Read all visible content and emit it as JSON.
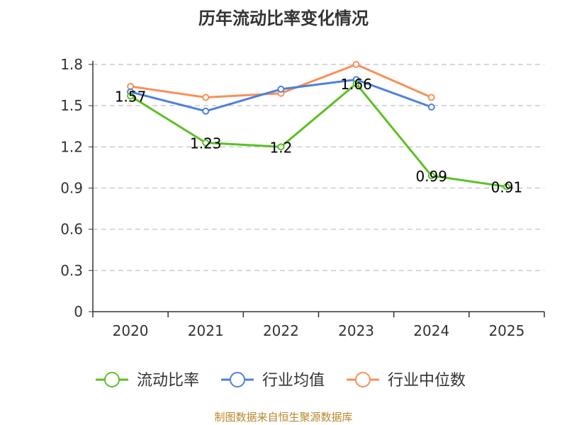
{
  "chart_data": {
    "type": "line",
    "title": "历年流动比率变化情况",
    "xlabel": "",
    "ylabel": "",
    "categories": [
      "2020",
      "2021",
      "2022",
      "2023",
      "2024",
      "2025"
    ],
    "yticks": [
      "0",
      "0.3",
      "0.6",
      "0.9",
      "1.2",
      "1.5",
      "1.8"
    ],
    "ylim": [
      0,
      1.8
    ],
    "grid": true,
    "legend_position": "bottom",
    "series": [
      {
        "name": "流动比率",
        "color": "#5cc024",
        "values": [
          1.57,
          1.23,
          1.2,
          1.66,
          0.99,
          0.91
        ],
        "labels": [
          "1.57",
          "1.23",
          "1.2",
          "1.66",
          "0.99",
          "0.91"
        ]
      },
      {
        "name": "行业均值",
        "color": "#4f80db",
        "values": [
          1.6,
          1.46,
          1.62,
          1.69,
          1.49,
          null
        ]
      },
      {
        "name": "行业中位数",
        "color": "#f79059",
        "values": [
          1.64,
          1.56,
          1.59,
          1.8,
          1.56,
          null
        ]
      }
    ]
  },
  "footer": {
    "source": "制图数据来自恒生聚源数据库"
  }
}
